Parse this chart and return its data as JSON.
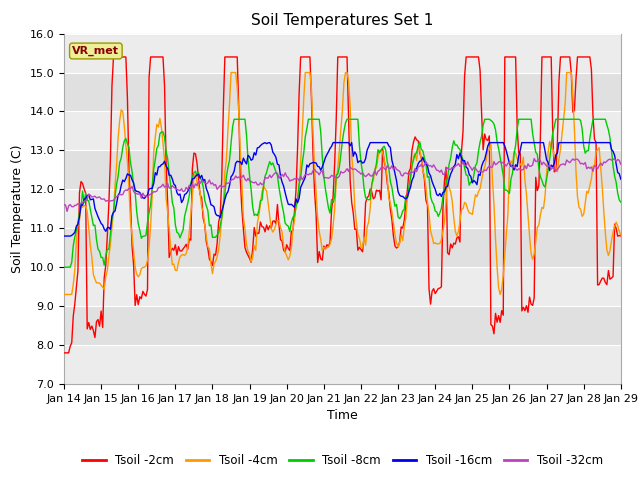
{
  "title": "Soil Temperatures Set 1",
  "xlabel": "Time",
  "ylabel": "Soil Temperature (C)",
  "ylim": [
    7.0,
    16.0
  ],
  "yticks": [
    7.0,
    8.0,
    9.0,
    10.0,
    11.0,
    12.0,
    13.0,
    14.0,
    15.0,
    16.0
  ],
  "xlim": [
    0,
    360
  ],
  "date_labels": [
    "Jan 14",
    "Jan 15",
    "Jan 16",
    "Jan 17",
    "Jan 18",
    "Jan 19",
    "Jan 20",
    "Jan 21",
    "Jan 22",
    "Jan 23",
    "Jan 24",
    "Jan 25",
    "Jan 26",
    "Jan 27",
    "Jan 28",
    "Jan 29"
  ],
  "colors": {
    "Tsoil -2cm": "#ff0000",
    "Tsoil -4cm": "#ff9900",
    "Tsoil -8cm": "#00cc00",
    "Tsoil -16cm": "#0000ee",
    "Tsoil -32cm": "#bb44bb"
  },
  "annotation_label": "VR_met",
  "annotation_color": "#880000",
  "annotation_bg": "#eeee99",
  "plot_bg": "#e0e0e0",
  "band_color": "#ececec",
  "linewidth": 1.0,
  "title_fontsize": 11,
  "axis_fontsize": 9,
  "tick_fontsize": 8
}
